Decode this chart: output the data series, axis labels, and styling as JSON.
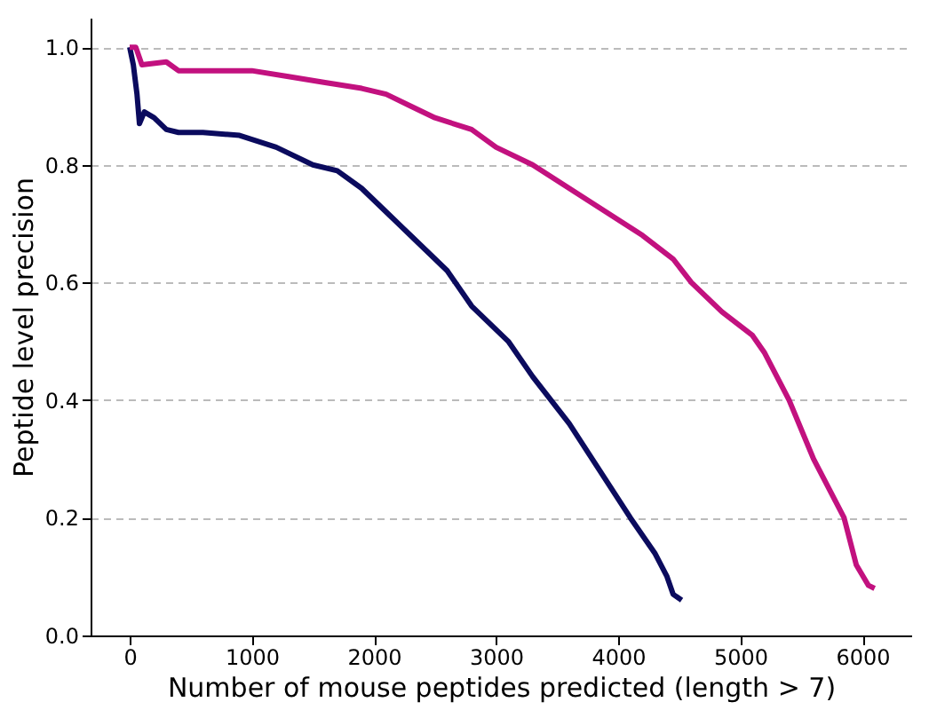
{
  "chart_data": {
    "type": "line",
    "xlabel": "Number of mouse peptides predicted (length > 7)",
    "ylabel": "Peptide level precision",
    "xlim": [
      -320,
      6400
    ],
    "ylim": [
      0,
      1.05
    ],
    "xticks": [
      0,
      1000,
      2000,
      3000,
      4000,
      5000,
      6000
    ],
    "yticks": [
      {
        "value": 0,
        "label": "0.0"
      },
      0.2,
      0.4,
      0.6,
      0.8,
      {
        "value": 1,
        "label": "1.0"
      }
    ],
    "grid": "y",
    "line_style": "solid",
    "marker": "none",
    "series": [
      {
        "color": "#0b0b5e",
        "x": [
          0,
          30,
          60,
          80,
          120,
          200,
          300,
          400,
          600,
          900,
          1200,
          1500,
          1700,
          1900,
          2100,
          2300,
          2600,
          2800,
          3100,
          3300,
          3600,
          3850,
          4100,
          4300,
          4400,
          4450,
          4520
        ],
        "values": [
          1.0,
          0.97,
          0.92,
          0.87,
          0.89,
          0.88,
          0.86,
          0.855,
          0.855,
          0.85,
          0.83,
          0.8,
          0.79,
          0.76,
          0.72,
          0.68,
          0.62,
          0.56,
          0.5,
          0.44,
          0.36,
          0.28,
          0.2,
          0.14,
          0.1,
          0.07,
          0.06
        ]
      },
      {
        "color": "#c2117f",
        "x": [
          0,
          50,
          100,
          300,
          400,
          1000,
          1300,
          1600,
          1900,
          2100,
          2300,
          2500,
          2800,
          3000,
          3300,
          3600,
          3900,
          4200,
          4450,
          4600,
          4850,
          5100,
          5200,
          5400,
          5600,
          5850,
          5950,
          6050,
          6100
        ],
        "values": [
          1.0,
          1.0,
          0.97,
          0.975,
          0.96,
          0.96,
          0.95,
          0.94,
          0.93,
          0.92,
          0.9,
          0.88,
          0.86,
          0.83,
          0.8,
          0.76,
          0.72,
          0.68,
          0.64,
          0.6,
          0.55,
          0.51,
          0.48,
          0.4,
          0.3,
          0.2,
          0.12,
          0.085,
          0.08
        ]
      }
    ]
  }
}
